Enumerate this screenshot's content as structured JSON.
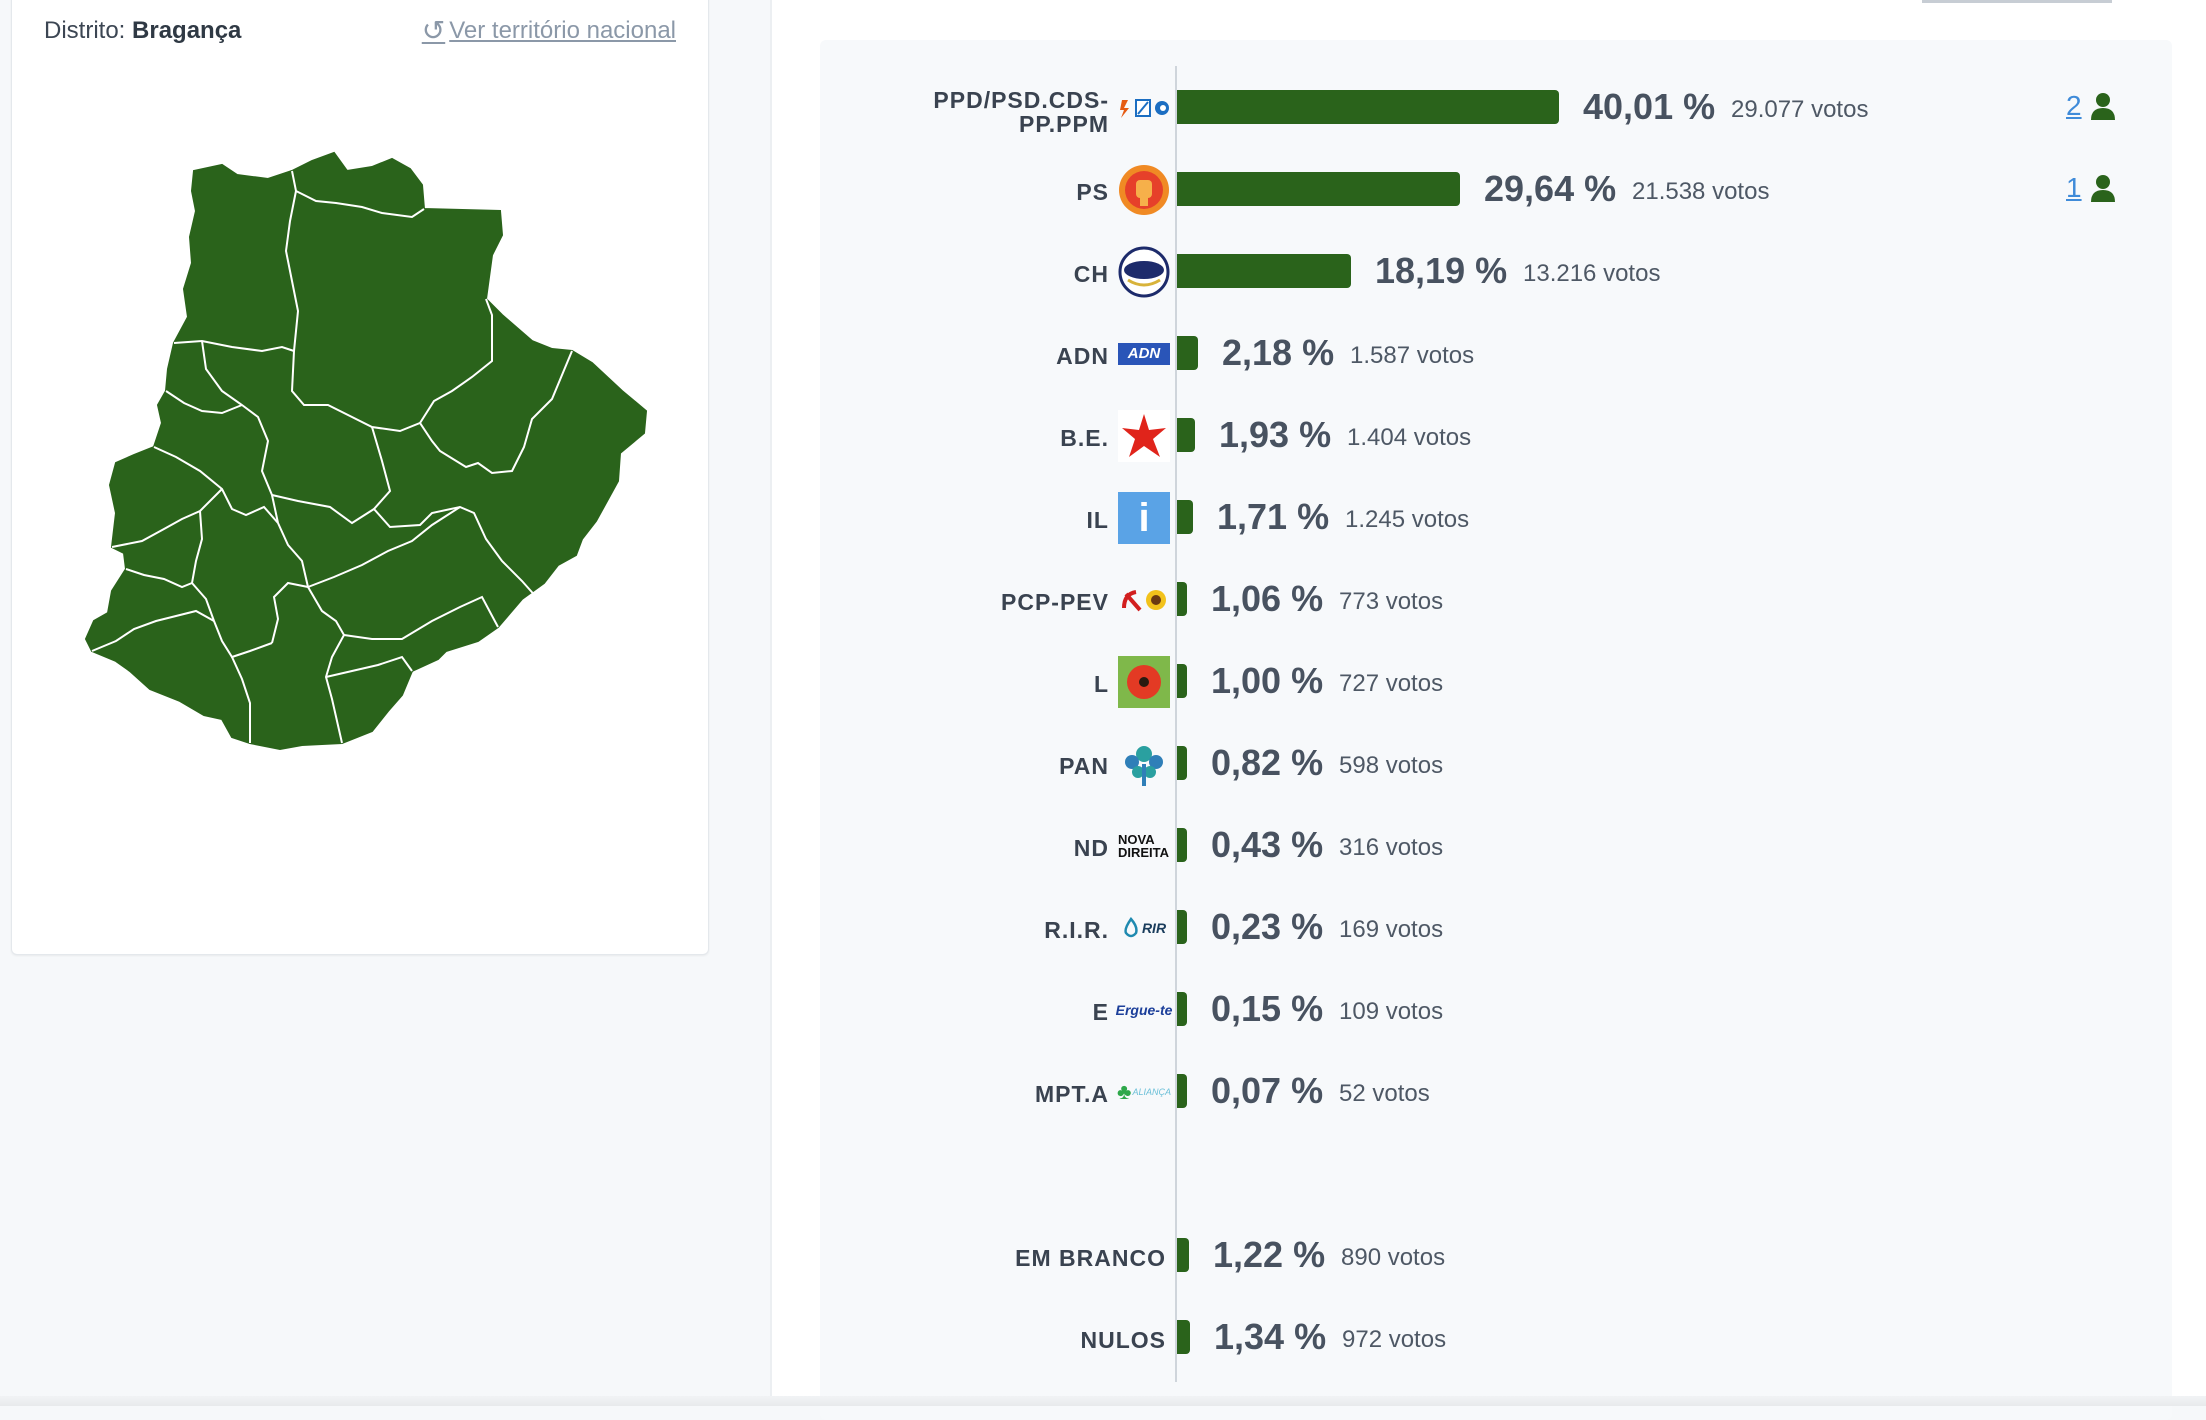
{
  "map_panel": {
    "district_prefix": "Distrito:",
    "district_name": "Bragança",
    "national_link": "Ver território nacional",
    "map_color": "#2a631b"
  },
  "results": [
    {
      "party": "PPD/PSD.CDS-PP.PPM",
      "party_line1": "PPD/PSD.CDS-",
      "party_line2": "PP.PPM",
      "logo": "ad-coalition-logo",
      "percent": 40.01,
      "percent_label": "40,01 %",
      "votes_label": "29.077 votos",
      "seats": "2"
    },
    {
      "party": "PS",
      "logo": "ps-fist-rose-logo",
      "percent": 29.64,
      "percent_label": "29,64 %",
      "votes_label": "21.538 votos",
      "seats": "1"
    },
    {
      "party": "CH",
      "logo": "chega-logo",
      "percent": 18.19,
      "percent_label": "18,19 %",
      "votes_label": "13.216 votos"
    },
    {
      "party": "ADN",
      "logo": "adn-logo",
      "logo_text": "ADN",
      "percent": 2.18,
      "percent_label": "2,18 %",
      "votes_label": "1.587 votos"
    },
    {
      "party": "B.E.",
      "logo": "be-star-logo",
      "percent": 1.93,
      "percent_label": "1,93 %",
      "votes_label": "1.404 votos"
    },
    {
      "party": "IL",
      "logo": "il-logo",
      "logo_text": "i",
      "percent": 1.71,
      "percent_label": "1,71 %",
      "votes_label": "1.245 votos"
    },
    {
      "party": "PCP-PEV",
      "logo": "cdu-hammer-sickle-sunflower-logo",
      "percent": 1.06,
      "percent_label": "1,06 %",
      "votes_label": "773 votos"
    },
    {
      "party": "L",
      "logo": "livre-poppy-logo",
      "percent": 1.0,
      "percent_label": "1,00 %",
      "votes_label": "727 votos"
    },
    {
      "party": "PAN",
      "logo": "pan-tree-logo",
      "percent": 0.82,
      "percent_label": "0,82 %",
      "votes_label": "598 votos"
    },
    {
      "party": "ND",
      "logo": "nova-direita-logo",
      "logo_text_1": "NOVA",
      "logo_text_2": "DIREITA",
      "percent": 0.43,
      "percent_label": "0,43 %",
      "votes_label": "316 votos"
    },
    {
      "party": "R.I.R.",
      "logo": "rir-logo",
      "logo_text": "RIR",
      "percent": 0.23,
      "percent_label": "0,23 %",
      "votes_label": "169 votos"
    },
    {
      "party": "E",
      "logo": "ergue-te-logo",
      "logo_text": "Ergue-te",
      "percent": 0.15,
      "percent_label": "0,15 %",
      "votes_label": "109 votos"
    },
    {
      "party": "MPT.A",
      "logo": "alianca-clover-logo",
      "logo_text": "ALIANÇA",
      "percent": 0.07,
      "percent_label": "0,07 %",
      "votes_label": "52 votos"
    }
  ],
  "extra": [
    {
      "party": "EM BRANCO",
      "percent": 1.22,
      "percent_label": "1,22 %",
      "votes_label": "890 votos"
    },
    {
      "party": "NULOS",
      "percent": 1.34,
      "percent_label": "1,34 %",
      "votes_label": "972 votos"
    }
  ],
  "colors": {
    "bar": "#2a631b",
    "seat_link": "#3f8bd9"
  }
}
